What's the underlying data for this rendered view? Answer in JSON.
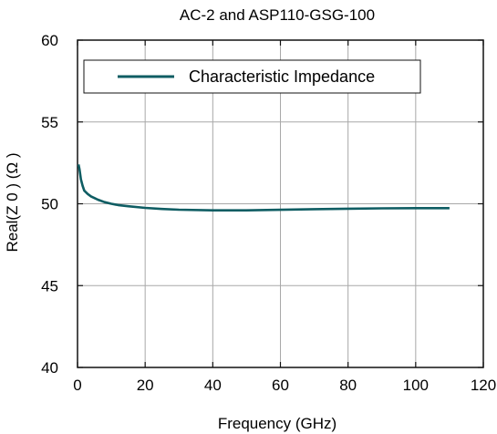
{
  "chart_data": {
    "type": "line",
    "title": "AC-2 and ASP110-GSG-100",
    "xlabel": "Frequency (GHz)",
    "ylabel": "Real(Z 0 ) (Ω )",
    "xlim": [
      0,
      120
    ],
    "ylim": [
      40,
      60
    ],
    "xticks": [
      "0",
      "20",
      "40",
      "60",
      "80",
      "100",
      "120"
    ],
    "yticks": [
      "40",
      "45",
      "50",
      "55",
      "60"
    ],
    "grid": true,
    "legend_position": "top-left",
    "series": [
      {
        "name": "Characteristic Impedance",
        "color": "#0f5d63",
        "x": [
          0.3,
          0.6,
          1.0,
          1.5,
          2,
          3,
          4,
          5,
          6,
          8,
          10,
          12,
          15,
          20,
          25,
          30,
          40,
          50,
          60,
          70,
          80,
          90,
          100,
          110
        ],
        "y": [
          52.4,
          52.1,
          51.5,
          51.1,
          50.8,
          50.6,
          50.45,
          50.35,
          50.25,
          50.1,
          50.0,
          49.92,
          49.85,
          49.75,
          49.68,
          49.64,
          49.6,
          49.6,
          49.63,
          49.67,
          49.7,
          49.72,
          49.73,
          49.73
        ]
      }
    ]
  }
}
